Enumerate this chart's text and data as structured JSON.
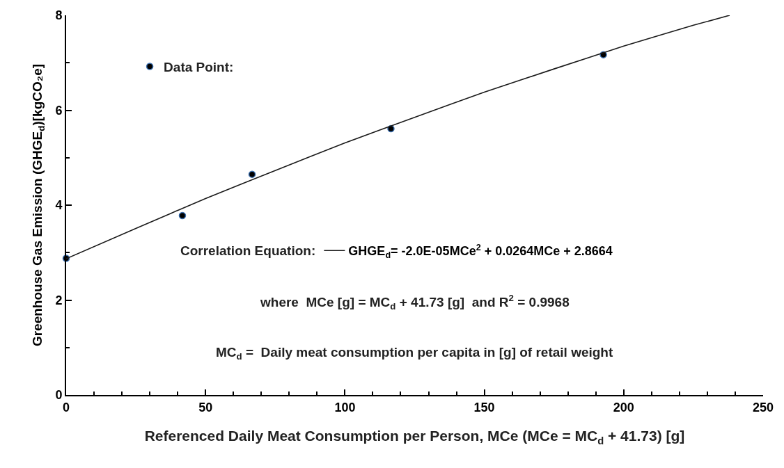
{
  "chart_data": {
    "type": "scatter",
    "xlabel": "Referenced Daily Meat Consumption per Person, MCe (MCe = MC$_{d}$ + 41.73) [g]",
    "ylabel": "Greenhouse Gas Emission (GHGE$_{d}$)[kgCO₂e]",
    "xlim": [
      0,
      250
    ],
    "ylim": [
      0,
      8
    ],
    "xticks": [
      0,
      {
        "value": 10,
        "label": null
      },
      {
        "value": 20,
        "label": null
      },
      {
        "value": 30,
        "label": null
      },
      {
        "value": 40,
        "label": null
      },
      50,
      {
        "value": 60,
        "label": null
      },
      {
        "value": 70,
        "label": null
      },
      {
        "value": 80,
        "label": null
      },
      {
        "value": 90,
        "label": null
      },
      100,
      {
        "value": 110,
        "label": null
      },
      {
        "value": 120,
        "label": null
      },
      {
        "value": 130,
        "label": null
      },
      {
        "value": 140,
        "label": null
      },
      150,
      {
        "value": 160,
        "label": null
      },
      {
        "value": 170,
        "label": null
      },
      {
        "value": 180,
        "label": null
      },
      {
        "value": 190,
        "label": null
      },
      200,
      {
        "value": 210,
        "label": null
      },
      {
        "value": 220,
        "label": null
      },
      {
        "value": 230,
        "label": null
      },
      {
        "value": 240,
        "label": null
      },
      250
    ],
    "yticks": [
      0,
      {
        "value": 1,
        "label": null
      },
      2,
      {
        "value": 3,
        "label": null
      },
      4,
      {
        "value": 5,
        "label": null
      },
      6,
      {
        "value": 7,
        "label": null
      },
      8
    ],
    "marker": "circle",
    "legend": "top left",
    "series": [
      {
        "name": "Data Point:",
        "color": "#000000",
        "x": [
          0,
          41.7,
          66.7,
          116.5,
          192.7
        ],
        "values": [
          2.88,
          3.78,
          4.65,
          5.61,
          7.17
        ]
      },
      {
        "name": "GHGE$_{d}$= -2.0E-05MCe$^{2}$ + 0.0264MCe + 2.8664",
        "type": "line",
        "color": "#1a1a1a",
        "line_style": "solid",
        "marker": "none",
        "x": [
          0,
          25,
          50,
          75,
          100,
          125,
          150,
          175,
          200,
          225,
          238
        ],
        "values": [
          2.87,
          3.51,
          4.14,
          4.73,
          5.31,
          5.85,
          6.38,
          6.87,
          7.35,
          7.79,
          8.0
        ]
      }
    ],
    "annotations": [
      "Correlation Equation:",
      "where  MCe [g] = MC$_{d}$ + 41.73 [g]  and R$^{2}$ = 0.9968",
      "MC$_{d}$ =  Daily meat consumption per capita in [g] of retail weight"
    ]
  }
}
